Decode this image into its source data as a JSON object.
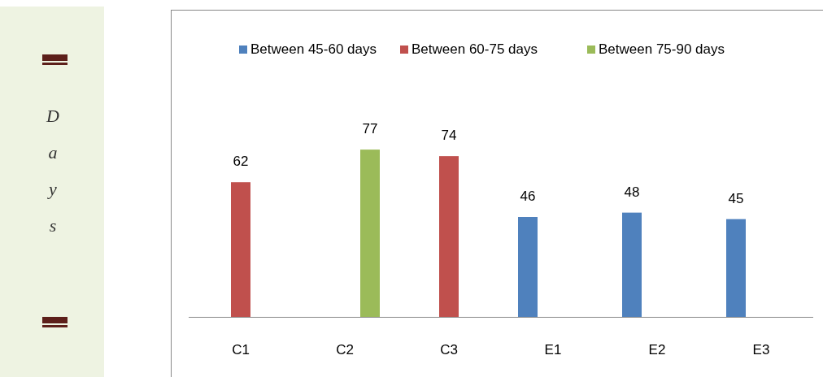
{
  "chart_data": {
    "type": "bar",
    "annotations": [
      "Days"
    ],
    "categories": [
      "C1",
      "C2",
      "C3",
      "E1",
      "E2",
      "E3"
    ],
    "series": [
      {
        "name": "Between 45-60 days",
        "color": "#4f81bd",
        "values": [
          null,
          null,
          null,
          46,
          48,
          45
        ]
      },
      {
        "name": "Between 60-75 days",
        "color": "#c0504d",
        "values": [
          62,
          null,
          74,
          null,
          null,
          null
        ]
      },
      {
        "name": "Between 75-90 days",
        "color": "#9bbb59",
        "values": [
          null,
          77,
          null,
          null,
          null,
          null
        ]
      }
    ],
    "data_labels": true,
    "legend": "top",
    "grid": false
  }
}
